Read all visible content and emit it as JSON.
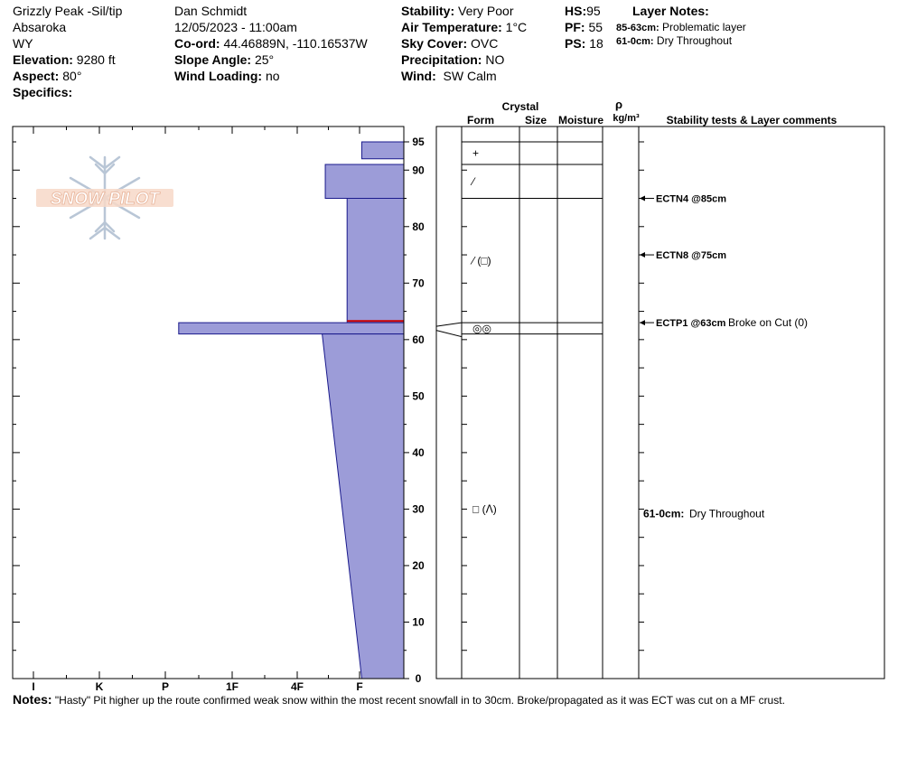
{
  "header": {
    "location": "Grizzly Peak -Sil/tip",
    "range": "Absaroka",
    "state": "WY",
    "elevation_label": "Elevation:",
    "elevation": "9280 ft",
    "aspect_label": "Aspect:",
    "aspect": "80°",
    "specifics_label": "Specifics:",
    "observer": "Dan Schmidt",
    "datetime": "12/05/2023 - 11:00am",
    "coord_label": "Co-ord:",
    "coord": "44.46889N, -110.16537W",
    "slope_label": "Slope Angle:",
    "slope": "25°",
    "wind_loading_label": "Wind Loading:",
    "wind_loading": "no",
    "stability_label": "Stability:",
    "stability": "Very Poor",
    "air_temp_label": "Air Temperature:",
    "air_temp": "1°C",
    "sky_label": "Sky Cover:",
    "sky": "OVC",
    "precip_label": "Precipitation:",
    "precip": "NO",
    "wind_label": "Wind:",
    "wind": "SW Calm",
    "hs_label": "HS:",
    "hs": "95",
    "pf_label": "PF:",
    "pf": "55",
    "ps_label": "PS:",
    "ps": "18",
    "layer_notes_title": "Layer Notes:",
    "layer_notes": [
      {
        "range": "85-63cm:",
        "text": "Problematic layer"
      },
      {
        "range": "61-0cm:",
        "text": "Dry Throughout"
      }
    ]
  },
  "logo_text": "SNOW PILOT",
  "colors": {
    "fill": "#9c9cd8",
    "outline": "#1a1a8c",
    "red_layer": "#cc0000"
  },
  "columns": {
    "crystal": "Crystal",
    "form": "Form",
    "size": "Size",
    "moisture": "Moisture",
    "rho": "ρ",
    "density_unit": "kg/m³",
    "stability_comments": "Stability tests & Layer comments"
  },
  "chart_data": {
    "type": "area",
    "hardness_axis": [
      "I",
      "K",
      "P",
      "1F",
      "4F",
      "F"
    ],
    "depth_ticks": [
      "0",
      "10",
      "20",
      "30",
      "40",
      "50",
      "60",
      "70",
      "80",
      "90",
      "95"
    ],
    "ylim": [
      0,
      95
    ],
    "profile": [
      {
        "bottom": 92,
        "top": 95,
        "hardness": 0.95,
        "hardness_bottom": 0.95
      },
      {
        "bottom": 85,
        "top": 91,
        "hardness": 1.55,
        "hardness_bottom": 1.55
      },
      {
        "bottom": 63,
        "top": 85,
        "hardness": 1.2,
        "hardness_bottom": 1.2
      },
      {
        "bottom": 61,
        "top": 63,
        "hardness": 3.8,
        "hardness_bottom": 3.8
      },
      {
        "bottom": 0,
        "top": 61,
        "hardness": 1.6,
        "hardness_bottom": 0.95
      }
    ],
    "layer_lines": [
      95,
      91,
      85,
      63,
      61
    ],
    "red_layer_depth": 63.3,
    "crystal_forms": [
      {
        "depth": 93,
        "symbol": "+"
      },
      {
        "depth": 88,
        "symbol": "⁄"
      },
      {
        "depth": 74,
        "symbol": "⁄ (□)"
      },
      {
        "depth": 62,
        "symbol": "◎◎"
      },
      {
        "depth": 30,
        "symbol": "□ (ᐱ)"
      }
    ],
    "stability_tests": [
      {
        "depth": 85,
        "label": "ECTN4 @85cm",
        "comment": ""
      },
      {
        "depth": 75,
        "label": "ECTN8 @75cm",
        "comment": ""
      },
      {
        "depth": 63,
        "label": "ECTP1 @63cm",
        "comment": "Broke on Cut (0)"
      }
    ],
    "layer_comments": [
      {
        "depth": 30,
        "range": "61-0cm:",
        "text": "Dry Throughout"
      }
    ]
  },
  "notes": {
    "label": "Notes:",
    "text": "\"Hasty\" Pit higher up the route confirmed weak snow within the most recent snowfall in to 30cm.  Broke/propagated as it was ECT was cut on a MF crust."
  }
}
